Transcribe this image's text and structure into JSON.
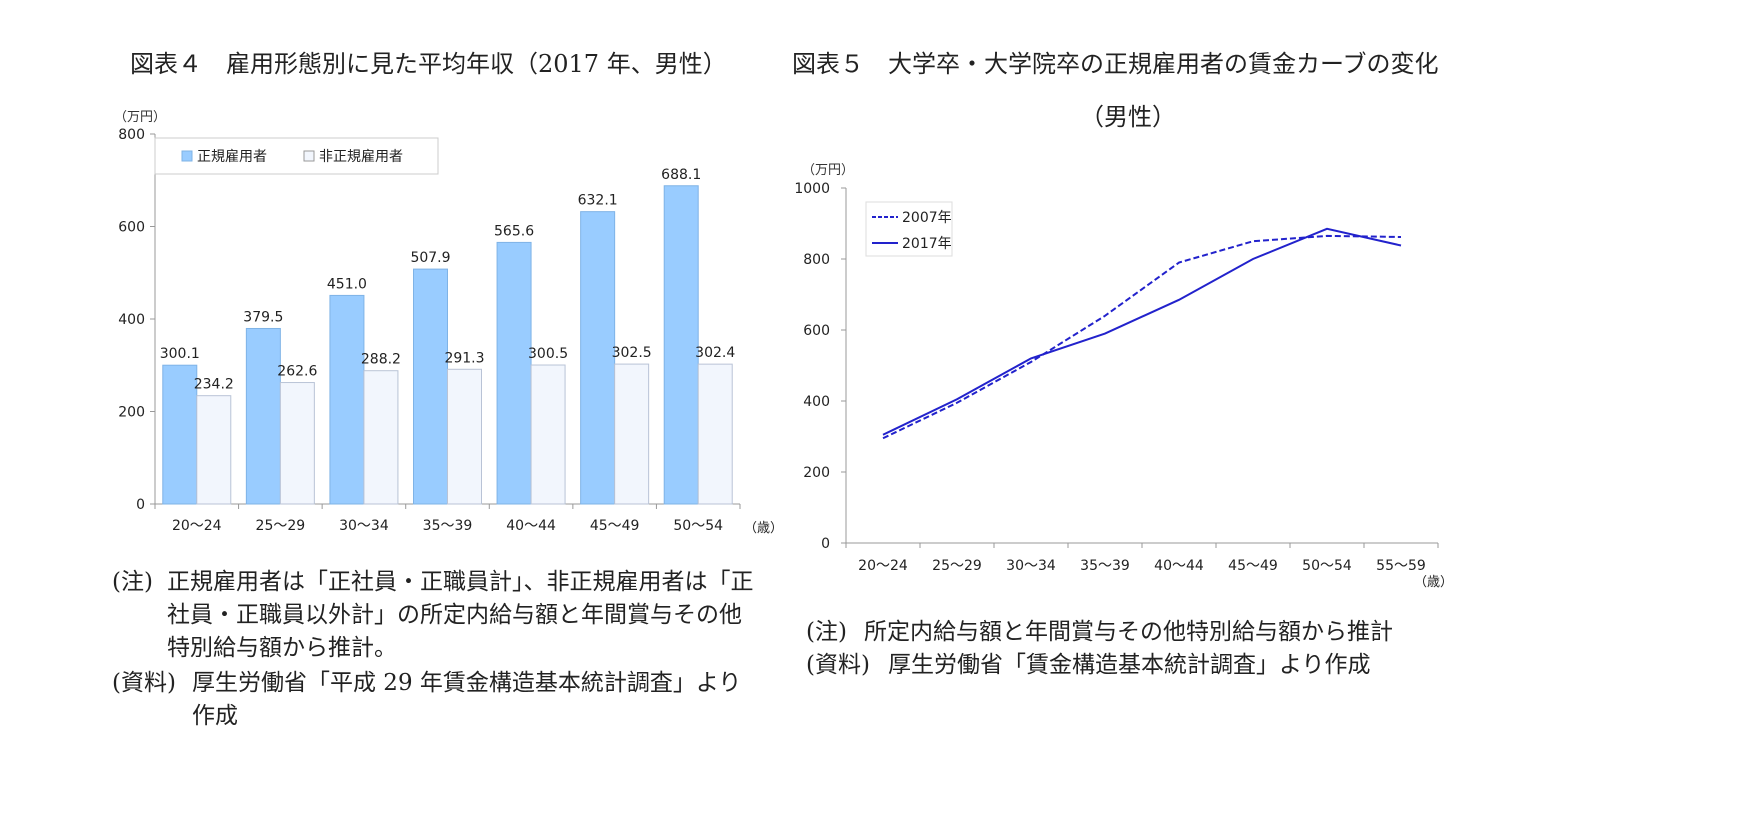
{
  "figure4": {
    "title": "図表４　雇用形態別に見た平均年収（2017 年、男性）",
    "note_label": "(注)",
    "note_text": "正規雇用者は「正社員・正職員計」、非正規雇用者は「正社員・正職員以外計」の所定内給与額と年間賞与その他特別給与額から推計。",
    "source_label": "(資料)",
    "source_text": "厚生労働省「平成 29 年賃金構造基本統計調査」より作成"
  },
  "figure5": {
    "title_line1": "図表５　大学卒・大学院卒の正規雇用者の賃金カーブの変化",
    "title_line2": "（男性）",
    "note_label": "(注)",
    "note_text": "所定内給与額と年間賞与その他特別給与額から推計",
    "source_label": "(資料)",
    "source_text": "厚生労働省「賃金構造基本統計調査」より作成"
  },
  "chart_data": [
    {
      "type": "bar",
      "y_unit_label": "（万円）",
      "x_unit_label": "（歳）",
      "ylim": [
        0,
        800
      ],
      "yticks": [
        0,
        200,
        400,
        600,
        800
      ],
      "categories": [
        "20〜24",
        "25〜29",
        "30〜34",
        "35〜39",
        "40〜44",
        "45〜49",
        "50〜54"
      ],
      "series": [
        {
          "name": "正規雇用者",
          "color": "#99ccff",
          "values": [
            300.1,
            379.5,
            451.0,
            507.9,
            565.6,
            632.1,
            688.1
          ],
          "labels": [
            "300.1",
            "379.5",
            "451.0",
            "507.9",
            "565.6",
            "632.1",
            "688.1"
          ]
        },
        {
          "name": "非正規雇用者",
          "color": "#f2f6fd",
          "values": [
            234.2,
            262.6,
            288.2,
            291.3,
            300.5,
            302.5,
            302.4
          ],
          "labels": [
            "234.2",
            "262.6",
            "288.2",
            "291.3",
            "300.5",
            "302.5",
            "302.4"
          ]
        }
      ],
      "legend": "top-left",
      "grid": false
    },
    {
      "type": "line",
      "y_unit_label": "（万円）",
      "x_unit_label": "（歳）",
      "ylim": [
        0,
        1000
      ],
      "yticks": [
        0,
        200,
        400,
        600,
        800,
        1000
      ],
      "categories": [
        "20〜24",
        "25〜29",
        "30〜34",
        "35〜39",
        "40〜44",
        "45〜49",
        "50〜54",
        "55〜59"
      ],
      "series": [
        {
          "name": "2007年",
          "color": "#2222cc",
          "dashed": true,
          "values": [
            295,
            395,
            510,
            640,
            790,
            850,
            865,
            862
          ]
        },
        {
          "name": "2017年",
          "color": "#2222cc",
          "dashed": false,
          "values": [
            305,
            405,
            520,
            590,
            685,
            800,
            885,
            838
          ]
        }
      ],
      "legend": "top-left",
      "grid": false
    }
  ]
}
